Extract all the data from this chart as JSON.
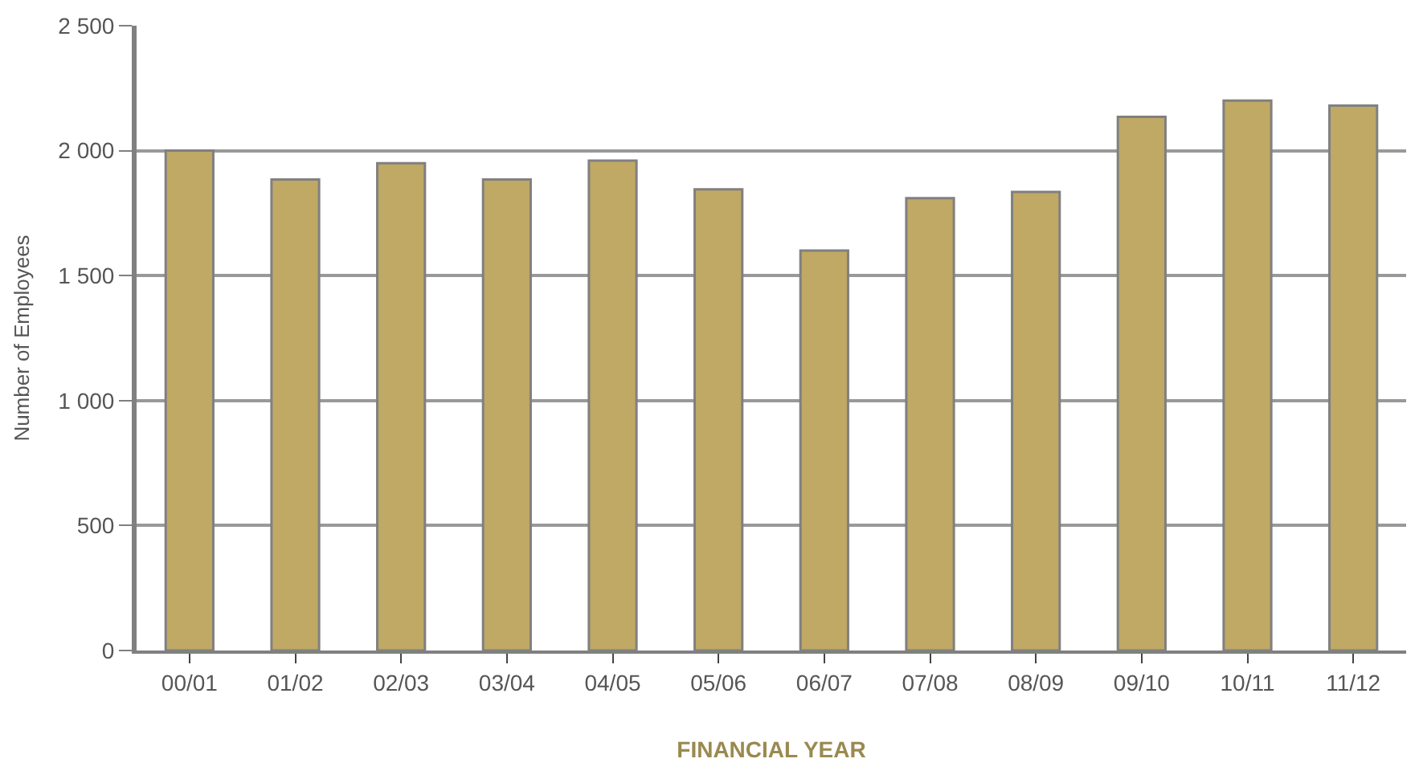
{
  "chart_data": {
    "type": "bar",
    "xlabel": "FINANCIAL YEAR",
    "ylabel": "Number of Employees",
    "categories": [
      "00/01",
      "01/02",
      "02/03",
      "03/04",
      "04/05",
      "05/06",
      "06/07",
      "07/08",
      "08/09",
      "09/10",
      "10/11",
      "11/12"
    ],
    "values": [
      2000,
      1885,
      1950,
      1885,
      1960,
      1845,
      1600,
      1810,
      1835,
      2135,
      2200,
      2180
    ],
    "color": "#c0a865",
    "ylim": [
      0,
      2500
    ],
    "yticks": [
      0,
      500,
      {
        "value": 1000,
        "label": "1 000"
      },
      {
        "value": 1500,
        "label": "1 500"
      },
      {
        "value": 2000,
        "label": "2 000"
      },
      {
        "value": 2500,
        "label": "2 500"
      }
    ],
    "grid": "y"
  }
}
